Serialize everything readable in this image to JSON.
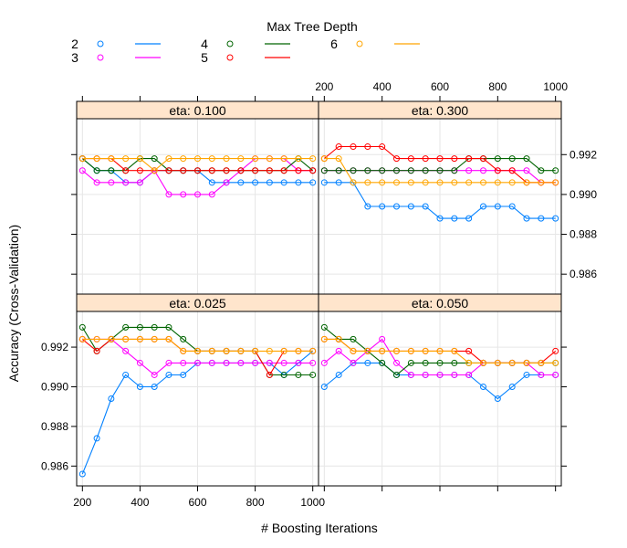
{
  "chart_data": {
    "type": "line",
    "xlabel": "# Boosting Iterations",
    "ylabel": "Accuracy (Cross-Validation)",
    "legend": {
      "title": "Max Tree Depth",
      "placement": "top",
      "entries": [
        {
          "name": "2",
          "color": "#0080ff"
        },
        {
          "name": "3",
          "color": "#ff00ff"
        },
        {
          "name": "4",
          "color": "#006400"
        },
        {
          "name": "5",
          "color": "#ff0000"
        },
        {
          "name": "6",
          "color": "#ffa500"
        }
      ]
    },
    "xlim": [
      180,
      1020
    ],
    "ylim": [
      0.985,
      0.9938
    ],
    "xticks": [
      200,
      400,
      600,
      800,
      1000
    ],
    "yticks": [
      0.986,
      0.988,
      0.99,
      0.992
    ],
    "x": [
      200,
      250,
      300,
      350,
      400,
      450,
      500,
      550,
      600,
      650,
      700,
      750,
      800,
      850,
      900,
      950,
      1000
    ],
    "grid": true,
    "panels": [
      {
        "title": "eta: 0.100",
        "series": [
          {
            "name": "2",
            "values": [
              0.9918,
              0.9912,
              0.9912,
              0.9906,
              0.9906,
              0.9912,
              0.9912,
              0.9912,
              0.9912,
              0.9906,
              0.9906,
              0.9906,
              0.9906,
              0.9906,
              0.9906,
              0.9906,
              0.9906
            ]
          },
          {
            "name": "3",
            "values": [
              0.9912,
              0.9906,
              0.9906,
              0.9906,
              0.9906,
              0.9912,
              0.99,
              0.99,
              0.99,
              0.99,
              0.9906,
              0.9912,
              0.9918,
              0.9918,
              0.9918,
              0.9912,
              0.9912
            ]
          },
          {
            "name": "4",
            "values": [
              0.9918,
              0.9912,
              0.9912,
              0.9912,
              0.9918,
              0.9918,
              0.9912,
              0.9912,
              0.9912,
              0.9912,
              0.9912,
              0.9912,
              0.9912,
              0.9912,
              0.9912,
              0.9918,
              0.9912
            ]
          },
          {
            "name": "5",
            "values": [
              0.9918,
              0.9918,
              0.9918,
              0.9912,
              0.9912,
              0.9912,
              0.9912,
              0.9912,
              0.9912,
              0.9912,
              0.9912,
              0.9912,
              0.9912,
              0.9912,
              0.9912,
              0.9912,
              0.9912
            ]
          },
          {
            "name": "6",
            "values": [
              0.9918,
              0.9918,
              0.9918,
              0.9918,
              0.9918,
              0.9912,
              0.9918,
              0.9918,
              0.9918,
              0.9918,
              0.9918,
              0.9918,
              0.9918,
              0.9918,
              0.9918,
              0.9918,
              0.9918
            ]
          }
        ]
      },
      {
        "title": "eta: 0.300",
        "series": [
          {
            "name": "2",
            "values": [
              0.9906,
              0.9906,
              0.9906,
              0.9894,
              0.9894,
              0.9894,
              0.9894,
              0.9894,
              0.9888,
              0.9888,
              0.9888,
              0.9894,
              0.9894,
              0.9894,
              0.9888,
              0.9888,
              0.9888
            ]
          },
          {
            "name": "3",
            "values": [
              0.9912,
              0.9912,
              0.9912,
              0.9912,
              0.9912,
              0.9912,
              0.9912,
              0.9912,
              0.9912,
              0.9912,
              0.9912,
              0.9912,
              0.9912,
              0.9912,
              0.9912,
              0.9906,
              0.9906
            ]
          },
          {
            "name": "4",
            "values": [
              0.9912,
              0.9912,
              0.9912,
              0.9912,
              0.9912,
              0.9912,
              0.9912,
              0.9912,
              0.9912,
              0.9912,
              0.9918,
              0.9918,
              0.9918,
              0.9918,
              0.9918,
              0.9912,
              0.9912
            ]
          },
          {
            "name": "5",
            "values": [
              0.9918,
              0.9924,
              0.9924,
              0.9924,
              0.9924,
              0.9918,
              0.9918,
              0.9918,
              0.9918,
              0.9918,
              0.9918,
              0.9918,
              0.9912,
              0.9912,
              0.9906,
              0.9906,
              0.9906
            ]
          },
          {
            "name": "6",
            "values": [
              0.9918,
              0.9918,
              0.9906,
              0.9906,
              0.9906,
              0.9906,
              0.9906,
              0.9906,
              0.9906,
              0.9906,
              0.9906,
              0.9906,
              0.9906,
              0.9906,
              0.9906,
              0.9906,
              0.9906
            ]
          }
        ]
      },
      {
        "title": "eta: 0.025",
        "series": [
          {
            "name": "2",
            "values": [
              0.9856,
              0.9874,
              0.9894,
              0.9906,
              0.99,
              0.99,
              0.9906,
              0.9906,
              0.9912,
              0.9912,
              0.9912,
              0.9912,
              0.9912,
              0.9912,
              0.9906,
              0.9912,
              0.9918
            ]
          },
          {
            "name": "3",
            "values": [
              0.9924,
              0.9924,
              0.9924,
              0.9918,
              0.9912,
              0.9906,
              0.9912,
              0.9912,
              0.9912,
              0.9912,
              0.9912,
              0.9912,
              0.9912,
              0.9912,
              0.9912,
              0.9912,
              0.9912
            ]
          },
          {
            "name": "4",
            "values": [
              0.993,
              0.9918,
              0.9924,
              0.993,
              0.993,
              0.993,
              0.993,
              0.9924,
              0.9918,
              0.9918,
              0.9918,
              0.9918,
              0.9918,
              0.9906,
              0.9906,
              0.9906,
              0.9906
            ]
          },
          {
            "name": "5",
            "values": [
              0.9924,
              0.9918,
              0.9924,
              0.9924,
              0.9924,
              0.9924,
              0.9924,
              0.9918,
              0.9918,
              0.9918,
              0.9918,
              0.9918,
              0.9918,
              0.9906,
              0.9918,
              0.9918,
              0.9918
            ]
          },
          {
            "name": "6",
            "values": [
              0.9924,
              0.9924,
              0.9924,
              0.9924,
              0.9924,
              0.9924,
              0.9924,
              0.9918,
              0.9918,
              0.9918,
              0.9918,
              0.9918,
              0.9918,
              0.9918,
              0.9918,
              0.9918,
              0.9918
            ]
          }
        ]
      },
      {
        "title": "eta: 0.050",
        "series": [
          {
            "name": "2",
            "values": [
              0.99,
              0.9906,
              0.9912,
              0.9912,
              0.9912,
              0.9906,
              0.9906,
              0.9906,
              0.9906,
              0.9906,
              0.9906,
              0.99,
              0.9894,
              0.99,
              0.9906,
              0.9906,
              0.9906
            ]
          },
          {
            "name": "3",
            "values": [
              0.9912,
              0.9918,
              0.9912,
              0.9918,
              0.9924,
              0.9912,
              0.9906,
              0.9906,
              0.9906,
              0.9906,
              0.9906,
              0.9912,
              0.9912,
              0.9912,
              0.9912,
              0.9906,
              0.9906
            ]
          },
          {
            "name": "4",
            "values": [
              0.993,
              0.9924,
              0.9924,
              0.9918,
              0.9912,
              0.9906,
              0.9912,
              0.9912,
              0.9912,
              0.9912,
              0.9912,
              0.9912,
              0.9912,
              0.9912,
              0.9912,
              0.9912,
              0.9912
            ]
          },
          {
            "name": "5",
            "values": [
              0.9924,
              0.9924,
              0.9918,
              0.9918,
              0.9918,
              0.9918,
              0.9918,
              0.9918,
              0.9918,
              0.9918,
              0.9918,
              0.9912,
              0.9912,
              0.9912,
              0.9912,
              0.9912,
              0.9918
            ]
          },
          {
            "name": "6",
            "values": [
              0.9924,
              0.9924,
              0.9918,
              0.9918,
              0.9918,
              0.9918,
              0.9918,
              0.9918,
              0.9918,
              0.9918,
              0.9912,
              0.9912,
              0.9912,
              0.9912,
              0.9912,
              0.9912,
              0.9912
            ]
          }
        ]
      }
    ]
  }
}
